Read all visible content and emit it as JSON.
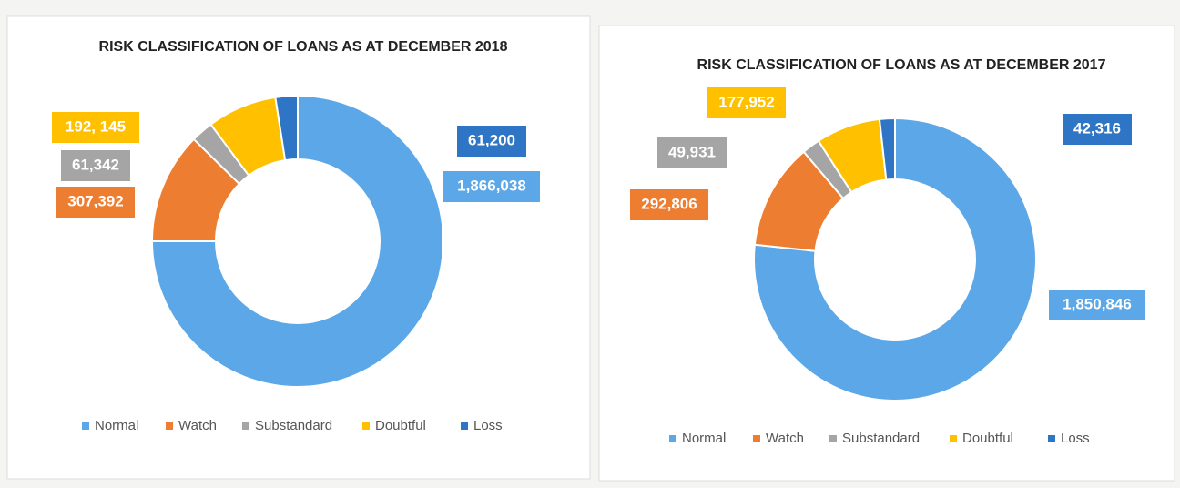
{
  "chart_data": [
    {
      "type": "donut",
      "title": "RISK CLASSIFICATION OF LOANS AS AT DECEMBER 2018",
      "categories": [
        "Normal",
        "Watch",
        "Substandard",
        "Doubtful",
        "Loss"
      ],
      "values": [
        1866038,
        307392,
        61342,
        192145,
        61200
      ],
      "value_labels": [
        "1,866,038",
        "307,392",
        "61,342",
        "192, 145",
        "61,200"
      ],
      "colors": [
        "#5ba7e8",
        "#ed7d31",
        "#a5a5a5",
        "#ffc000",
        "#2e75c6"
      ],
      "legend": "bottom"
    },
    {
      "type": "donut",
      "title": "RISK CLASSIFICATION OF LOANS AS AT DECEMBER 2017",
      "categories": [
        "Normal",
        "Watch",
        "Substandard",
        "Doubtful",
        "Loss"
      ],
      "values": [
        1850846,
        292806,
        49931,
        177952,
        42316
      ],
      "value_labels": [
        "1,850,846",
        "292,806",
        "49,931",
        "177,952",
        "42,316"
      ],
      "colors": [
        "#5ba7e8",
        "#ed7d31",
        "#a5a5a5",
        "#ffc000",
        "#2e75c6"
      ],
      "legend": "bottom"
    }
  ]
}
